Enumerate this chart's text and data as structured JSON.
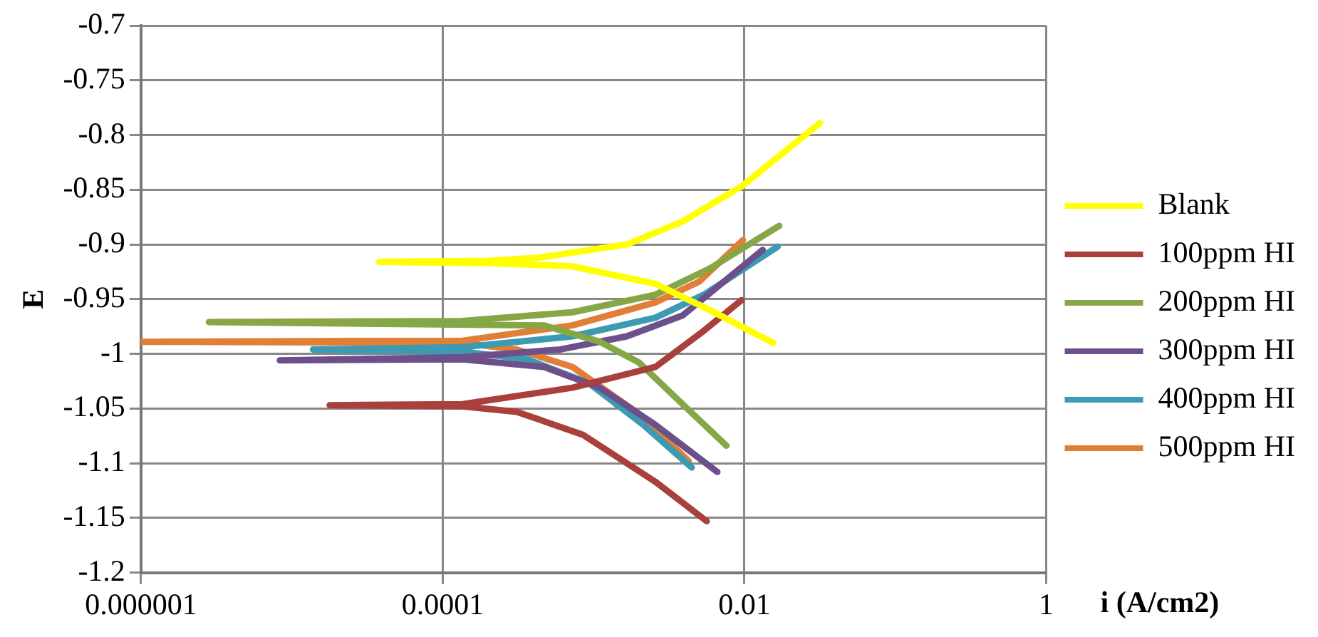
{
  "chart_data": {
    "type": "line",
    "xlabel": "i (A/cm2)",
    "ylabel": "E",
    "log": "x",
    "grid": true,
    "legend": "right",
    "marker": "none",
    "line_style": "solid",
    "xlim": [
      1e-06,
      1
    ],
    "xticks": [
      {
        "value": 1e-06,
        "label": "0.000001"
      },
      {
        "value": 0.0001,
        "label": "0.0001"
      },
      {
        "value": 0.01,
        "label": "0.01"
      },
      {
        "value": 1,
        "label": "1"
      }
    ],
    "ylim": [
      -1.2,
      -0.7
    ],
    "yticks": [
      -1.2,
      -1.15,
      -1.1,
      -1.05,
      -1,
      -0.95,
      -0.9,
      -0.85,
      -0.8,
      -0.75,
      -0.7
    ],
    "series": [
      {
        "name": "Blank",
        "color": "#ffff00",
        "x": [
          0.0155,
          0.00589,
          0.00257,
          0.000724,
          0.000204,
          3.8e-05,
          0.000204,
          0.000437,
          0.00166,
          0.00389,
          0.00977,
          0.0316
        ],
        "values": [
          -0.99,
          -0.96,
          -0.936,
          -0.92,
          -0.917,
          -0.916,
          -0.915,
          -0.912,
          -0.9,
          -0.879,
          -0.846,
          -0.789
        ]
      },
      {
        "name": "100ppm HI",
        "color": "#a9403c",
        "x": [
          0.00562,
          0.00257,
          0.000851,
          0.000309,
          0.000135,
          1.78e-05,
          0.000135,
          0.000724,
          0.00257,
          0.00537,
          0.00955
        ],
        "values": [
          -1.153,
          -1.117,
          -1.074,
          -1.053,
          -1.048,
          -1.047,
          -1.046,
          -1.031,
          -1.012,
          -0.979,
          -0.951
        ]
      },
      {
        "name": "200ppm HI",
        "color": "#86a746",
        "x": [
          0.00759,
          0.00389,
          0.002,
          0.0011,
          0.000468,
          2.82e-06,
          0.000135,
          0.000724,
          0.00257,
          0.00589,
          0.017
        ],
        "values": [
          -1.084,
          -1.046,
          -1.008,
          -0.989,
          -0.974,
          -0.971,
          -0.97,
          -0.962,
          -0.946,
          -0.922,
          -0.883
        ]
      },
      {
        "name": "300ppm HI",
        "color": "#6d4f8c",
        "x": [
          0.00661,
          0.00257,
          0.0011,
          0.000468,
          0.000135,
          8.32e-06,
          0.000135,
          0.000603,
          0.00166,
          0.00389,
          0.0132
        ],
        "values": [
          -1.108,
          -1.065,
          -1.031,
          -1.012,
          -1.005,
          -1.006,
          -1.003,
          -0.996,
          -0.984,
          -0.965,
          -0.905
        ]
      },
      {
        "name": "400ppm HI",
        "color": "#3c9ab3",
        "x": [
          0.00447,
          0.00214,
          0.000933,
          0.000363,
          0.000135,
          1.38e-05,
          0.000135,
          0.000724,
          0.00257,
          0.00537,
          0.0166
        ],
        "values": [
          -1.104,
          -1.065,
          -1.027,
          -1.005,
          -0.998,
          -0.996,
          -0.994,
          -0.984,
          -0.967,
          -0.946,
          -0.902
        ]
      },
      {
        "name": "500ppm HI",
        "color": "#e07f35",
        "x": [
          0.00427,
          0.002,
          0.000724,
          0.000309,
          0.000135,
          1e-06,
          0.000135,
          0.000724,
          0.00257,
          0.00501,
          0.00977
        ],
        "values": [
          -1.098,
          -1.055,
          -1.012,
          -0.996,
          -0.99,
          -0.989,
          -0.988,
          -0.974,
          -0.953,
          -0.934,
          -0.896
        ]
      }
    ]
  }
}
